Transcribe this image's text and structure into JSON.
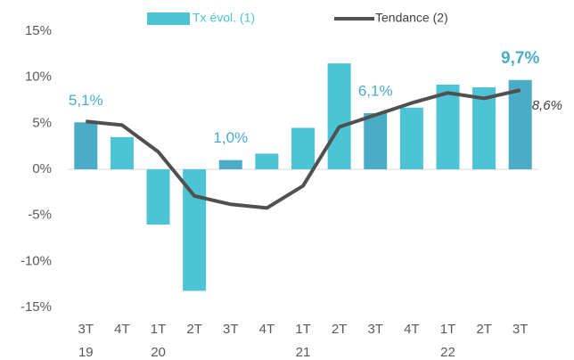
{
  "chart_data": {
    "type": "bar",
    "categories": [
      "3T",
      "4T",
      "1T",
      "2T",
      "3T",
      "4T",
      "1T",
      "2T",
      "3T",
      "4T",
      "1T",
      "2T",
      "3T"
    ],
    "category_groups": [
      "19",
      null,
      "20",
      null,
      null,
      null,
      "21",
      null,
      null,
      null,
      "22",
      null,
      null
    ],
    "ylim": [
      -15,
      15
    ],
    "yticks": [
      {
        "value": -15,
        "label": "-15%"
      },
      {
        "value": -10,
        "label": "-10%"
      },
      {
        "value": -5,
        "label": "-5%"
      },
      {
        "value": 0,
        "label": "0%"
      },
      {
        "value": 5,
        "label": "5%"
      },
      {
        "value": 10,
        "label": "10%"
      },
      {
        "value": 15,
        "label": "15%"
      }
    ],
    "legend": "top",
    "series": [
      {
        "name": "Tx évol. (1)",
        "type": "bar",
        "color": "#4dc3d6",
        "colors": [
          "#4aacc6",
          "#4dc3d6",
          "#4dc3d6",
          "#4dc3d6",
          "#4aacc6",
          "#4dc3d6",
          "#4dc3d6",
          "#4dc3d6",
          "#4aacc6",
          "#4dc3d6",
          "#4dc3d6",
          "#4dc3d6",
          "#4aacc6"
        ],
        "values": [
          5.1,
          3.5,
          -6.0,
          -13.2,
          1.0,
          1.7,
          4.5,
          11.5,
          6.1,
          6.7,
          9.2,
          8.9,
          9.7
        ],
        "value_labels": [
          "5,1%",
          null,
          null,
          null,
          "1,0%",
          null,
          null,
          null,
          "6,1%",
          null,
          null,
          null,
          "9,7%"
        ]
      },
      {
        "name": "Tendance (2)",
        "type": "line",
        "color": "#505050",
        "values": [
          5.2,
          4.8,
          1.9,
          -2.9,
          -3.8,
          -4.2,
          -1.8,
          4.6,
          5.9,
          7.2,
          8.3,
          7.7,
          8.6
        ],
        "value_labels": [
          null,
          null,
          null,
          null,
          null,
          null,
          null,
          null,
          null,
          null,
          null,
          null,
          "8,6%"
        ]
      }
    ]
  }
}
